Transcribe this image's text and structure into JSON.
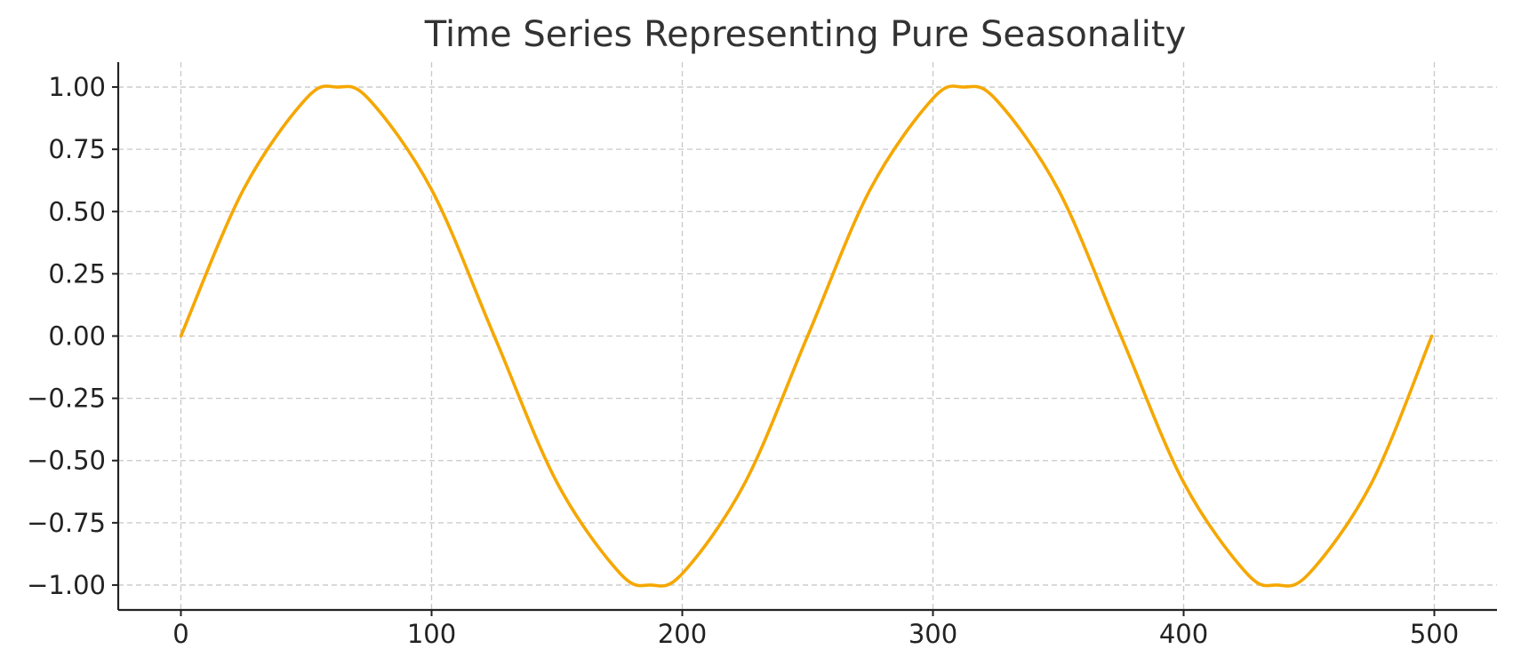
{
  "chart_data": {
    "type": "line",
    "title": "Time Series Representing Pure Seasonality",
    "xlabel": "",
    "ylabel": "",
    "xlim": [
      -25,
      525
    ],
    "ylim": [
      -1.1,
      1.1
    ],
    "xticks": [
      0,
      100,
      200,
      300,
      400,
      500
    ],
    "xtick_labels": [
      "0",
      "100",
      "200",
      "300",
      "400",
      "500"
    ],
    "yticks": [
      1.0,
      0.75,
      0.5,
      0.25,
      0.0,
      -0.25,
      -0.5,
      -0.75,
      -1.0
    ],
    "ytick_labels": [
      "1.00",
      "0.75",
      "0.50",
      "0.25",
      "0.00",
      "−0.25",
      "−0.50",
      "−0.75",
      "−1.00"
    ],
    "grid": true,
    "legend": "none",
    "series": [
      {
        "color": "#f5a700",
        "x": [
          0,
          25,
          50,
          62.4,
          75,
          100,
          125,
          150,
          175,
          187.3,
          200,
          225,
          250,
          275,
          300,
          312.2,
          325,
          350,
          375,
          400,
          425,
          437.1,
          450,
          475,
          499
        ],
        "y": [
          0.0,
          0.5894,
          0.9541,
          1.0,
          0.9511,
          0.5878,
          0.0,
          -0.5878,
          -0.9511,
          -1.0,
          -0.9541,
          -0.5894,
          0.0,
          0.5894,
          0.9541,
          1.0,
          0.9511,
          0.5878,
          0.0,
          -0.5878,
          -0.9511,
          -1.0,
          -0.9541,
          -0.5894,
          0.0
        ]
      }
    ]
  }
}
